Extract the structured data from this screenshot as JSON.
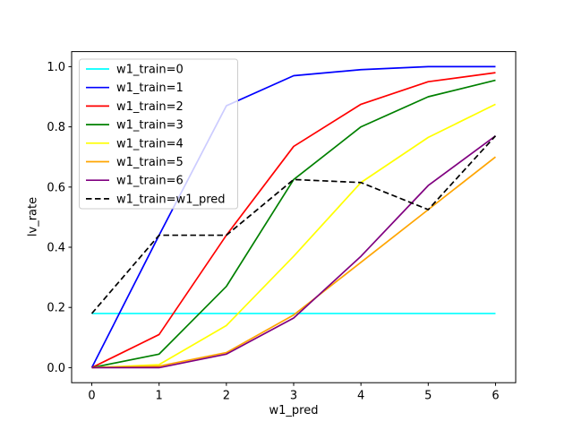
{
  "chart_data": {
    "type": "line",
    "title": "",
    "xlabel": "w1_pred",
    "ylabel": "lv_rate",
    "x": [
      0,
      1,
      2,
      3,
      4,
      5,
      6
    ],
    "xlim": [
      -0.3,
      6.3
    ],
    "ylim": [
      -0.05,
      1.05
    ],
    "xticks": [
      0,
      1,
      2,
      3,
      4,
      5,
      6
    ],
    "xtick_labels": [
      "0",
      "1",
      "2",
      "3",
      "4",
      "5",
      "6"
    ],
    "yticks": [
      0.0,
      0.2,
      0.4,
      0.6,
      0.8,
      1.0
    ],
    "ytick_labels": [
      "0.0",
      "0.2",
      "0.4",
      "0.6",
      "0.8",
      "1.0"
    ],
    "grid": false,
    "legend_position": "upper left",
    "legend_frame_alpha": 0.8,
    "series": [
      {
        "name": "w1_train=0",
        "color": "#00ffff",
        "style": "solid",
        "values": [
          0.18,
          0.18,
          0.18,
          0.18,
          0.18,
          0.18,
          0.18
        ]
      },
      {
        "name": "w1_train=1",
        "color": "#0000ff",
        "style": "solid",
        "values": [
          0.0,
          0.44,
          0.87,
          0.97,
          0.99,
          1.0,
          1.0
        ]
      },
      {
        "name": "w1_train=2",
        "color": "#ff0000",
        "style": "solid",
        "values": [
          0.0,
          0.11,
          0.44,
          0.735,
          0.875,
          0.95,
          0.98
        ]
      },
      {
        "name": "w1_train=3",
        "color": "#008000",
        "style": "solid",
        "values": [
          0.0,
          0.045,
          0.27,
          0.625,
          0.8,
          0.9,
          0.955
        ]
      },
      {
        "name": "w1_train=4",
        "color": "#ffff00",
        "style": "solid",
        "values": [
          0.0,
          0.01,
          0.14,
          0.37,
          0.615,
          0.765,
          0.875
        ]
      },
      {
        "name": "w1_train=5",
        "color": "#ffa500",
        "style": "solid",
        "values": [
          0.0,
          0.005,
          0.05,
          0.175,
          0.35,
          0.525,
          0.7
        ]
      },
      {
        "name": "w1_train=6",
        "color": "#800080",
        "style": "solid",
        "values": [
          0.0,
          0.0,
          0.045,
          0.165,
          0.37,
          0.605,
          0.77
        ]
      },
      {
        "name": "w1_train=w1_pred",
        "color": "#000000",
        "style": "dashed",
        "values": [
          0.18,
          0.44,
          0.44,
          0.625,
          0.615,
          0.525,
          0.77
        ]
      }
    ]
  }
}
